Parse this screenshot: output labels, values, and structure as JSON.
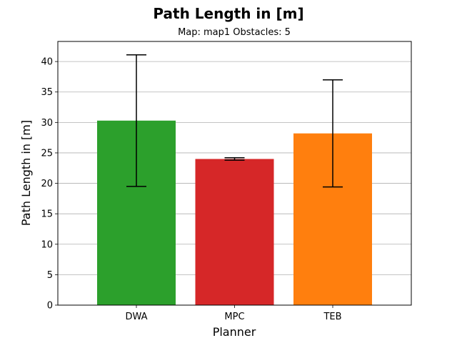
{
  "chart_data": {
    "type": "bar",
    "title": "Path Length in [m]",
    "subtitle": "Map: map1 Obstacles: 5",
    "xlabel": "Planner",
    "ylabel": "Path Length in [m]",
    "categories": [
      "DWA",
      "MPC",
      "TEB"
    ],
    "values": [
      30.3,
      24.0,
      28.2
    ],
    "error": [
      10.8,
      0.2,
      8.8
    ],
    "colors": [
      "#2ca02c",
      "#d62728",
      "#ff7f0e"
    ],
    "ylim": [
      0,
      43.3
    ],
    "yticks": [
      0,
      5,
      10,
      15,
      20,
      25,
      30,
      35,
      40
    ],
    "grid": "y"
  }
}
